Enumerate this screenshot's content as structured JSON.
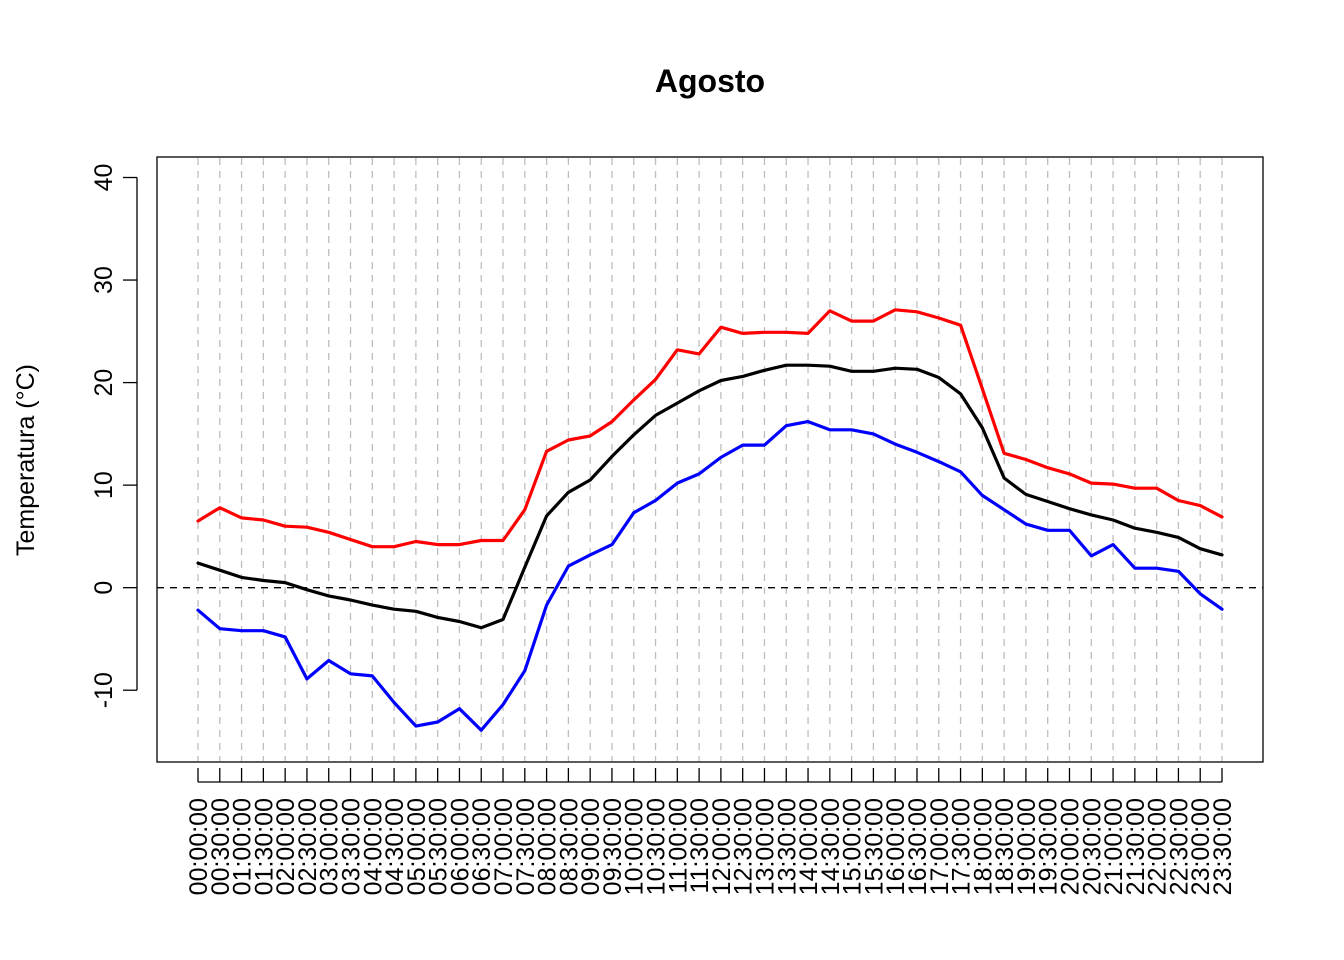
{
  "chart_data": {
    "type": "line",
    "title": "Agosto",
    "xlabel": "",
    "ylabel": "Temperatura (°C)",
    "ylim": [
      -17,
      42
    ],
    "yticks": [
      -10,
      0,
      10,
      20,
      30,
      40
    ],
    "grid": "vertical dashed lines at each x tick",
    "reference_line": 0,
    "x": [
      "00:00:00",
      "00:30:00",
      "01:00:00",
      "01:30:00",
      "02:00:00",
      "02:30:00",
      "03:00:00",
      "03:30:00",
      "04:00:00",
      "04:30:00",
      "05:00:00",
      "05:30:00",
      "06:00:00",
      "06:30:00",
      "07:00:00",
      "07:30:00",
      "08:00:00",
      "08:30:00",
      "09:00:00",
      "09:30:00",
      "10:00:00",
      "10:30:00",
      "11:00:00",
      "11:30:00",
      "12:00:00",
      "12:30:00",
      "13:00:00",
      "13:30:00",
      "14:00:00",
      "14:30:00",
      "15:00:00",
      "15:30:00",
      "16:00:00",
      "16:30:00",
      "17:00:00",
      "17:30:00",
      "18:00:00",
      "18:30:00",
      "19:00:00",
      "19:30:00",
      "20:00:00",
      "20:30:00",
      "21:00:00",
      "21:30:00",
      "22:00:00",
      "22:30:00",
      "23:00:00",
      "23:30:00"
    ],
    "series": [
      {
        "color": "#ff0000",
        "values": [
          6.5,
          7.8,
          6.8,
          6.6,
          6.0,
          5.9,
          5.4,
          4.7,
          4.0,
          4.0,
          4.5,
          4.2,
          4.2,
          4.6,
          4.6,
          7.6,
          13.3,
          14.4,
          14.8,
          16.2,
          18.3,
          20.3,
          23.2,
          22.8,
          25.4,
          24.8,
          24.9,
          24.9,
          24.8,
          27.0,
          26.0,
          26.0,
          27.1,
          26.9,
          26.3,
          25.6,
          19.4,
          13.1,
          12.5,
          11.7,
          11.1,
          10.2,
          10.1,
          9.7,
          9.7,
          8.5,
          8.0,
          6.9
        ]
      },
      {
        "color": "#000000",
        "values": [
          2.4,
          1.7,
          1.0,
          0.7,
          0.5,
          -0.2,
          -0.8,
          -1.2,
          -1.7,
          -2.1,
          -2.3,
          -2.9,
          -3.3,
          -3.9,
          -3.1,
          2.0,
          7.0,
          9.3,
          10.5,
          12.8,
          14.9,
          16.8,
          18.0,
          19.2,
          20.2,
          20.6,
          21.2,
          21.7,
          21.7,
          21.6,
          21.1,
          21.1,
          21.4,
          21.3,
          20.5,
          18.9,
          15.6,
          10.7,
          9.1,
          8.4,
          7.7,
          7.1,
          6.6,
          5.8,
          5.4,
          4.9,
          3.8,
          3.2
        ]
      },
      {
        "color": "#0000ff",
        "values": [
          -2.2,
          -4.0,
          -4.2,
          -4.2,
          -4.8,
          -8.9,
          -7.1,
          -8.4,
          -8.6,
          -11.2,
          -13.5,
          -13.1,
          -11.8,
          -13.9,
          -11.4,
          -8.1,
          -1.7,
          2.1,
          3.2,
          4.2,
          7.3,
          8.5,
          10.2,
          11.1,
          12.7,
          13.9,
          13.9,
          15.8,
          16.2,
          15.4,
          15.4,
          15.0,
          14.0,
          13.2,
          12.3,
          11.3,
          9.0,
          7.6,
          6.2,
          5.6,
          5.6,
          3.1,
          4.2,
          1.9,
          1.9,
          1.6,
          -0.6,
          -2.1
        ]
      }
    ]
  }
}
